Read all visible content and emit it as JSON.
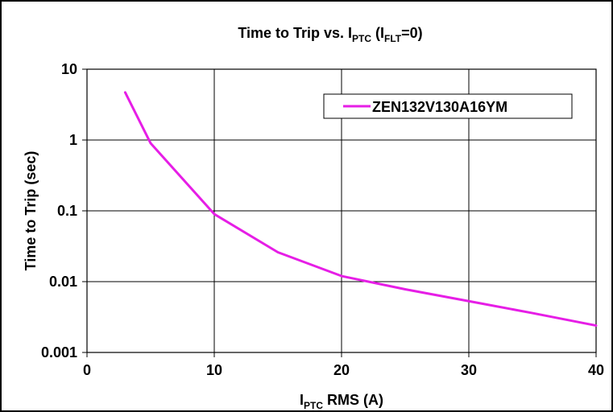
{
  "chart_data": {
    "type": "line",
    "title": {
      "main": "Time to Trip vs. I",
      "main_sub": "PTC",
      "suffix_open": " (I",
      "suffix_sub": "FLT",
      "suffix_close": "=0)"
    },
    "xlabel": {
      "main": "I",
      "sub": "PTC",
      "rest": " RMS (A)"
    },
    "ylabel": "Time to Trip (sec)",
    "xlim": [
      0,
      40
    ],
    "ylim": [
      0.001,
      10
    ],
    "yscale": "log",
    "grid": true,
    "legend": "top-right",
    "x_ticks": [
      {
        "value": 0,
        "label": "0"
      },
      {
        "value": 10,
        "label": "10"
      },
      {
        "value": 20,
        "label": "20"
      },
      {
        "value": 30,
        "label": "30"
      },
      {
        "value": 40,
        "label": "40"
      }
    ],
    "y_ticks": [
      {
        "value": 10,
        "label": "10"
      },
      {
        "value": 1,
        "label": "1"
      },
      {
        "value": 0.1,
        "label": "0.1"
      },
      {
        "value": 0.01,
        "label": "0.01"
      },
      {
        "value": 0.001,
        "label": "0.001"
      }
    ],
    "series": [
      {
        "name": "ZEN132V130A16YM",
        "color": "#e61ee6",
        "x": [
          3,
          5,
          10,
          15,
          20,
          25,
          30,
          35,
          40
        ],
        "y": [
          4.7,
          0.9,
          0.09,
          0.026,
          0.012,
          0.0078,
          0.0053,
          0.0036,
          0.0024
        ]
      }
    ]
  }
}
